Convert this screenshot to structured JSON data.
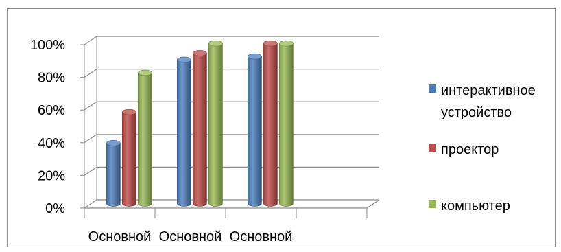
{
  "chart_data": {
    "type": "bar",
    "categories": [
      "Основной",
      "Основной",
      "Основной"
    ],
    "series": [
      {
        "name": "интерактивное устройство",
        "legend_lines": [
          "интерактивное",
          "устройство"
        ],
        "color": "#4a7ebb",
        "values": [
          37,
          88,
          90
        ]
      },
      {
        "name": "проектор",
        "legend_lines": [
          "проектор"
        ],
        "color": "#be4b48",
        "values": [
          56,
          92,
          98
        ]
      },
      {
        "name": "компьютер",
        "legend_lines": [
          "компьютер"
        ],
        "color": "#98b954",
        "values": [
          80,
          98,
          98
        ]
      }
    ],
    "yticks": [
      "0%",
      "20%",
      "40%",
      "60%",
      "80%",
      "100%"
    ],
    "ylim": [
      0,
      100
    ],
    "grid": true,
    "legend_position": "right",
    "style": "3d-cylinder"
  }
}
